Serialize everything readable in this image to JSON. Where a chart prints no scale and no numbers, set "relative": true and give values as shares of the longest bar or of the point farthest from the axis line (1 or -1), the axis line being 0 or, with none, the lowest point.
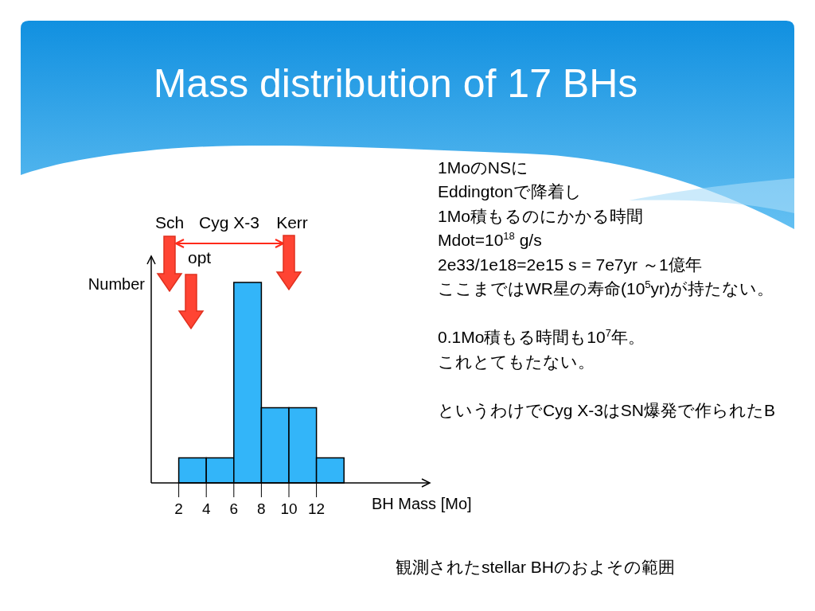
{
  "chart_data": {
    "type": "bar",
    "title": "Mass distribution of 17 BHs",
    "xlabel": "BH Mass [Mo]",
    "ylabel": "Number",
    "x": [
      3,
      5,
      7,
      9,
      11,
      13
    ],
    "values": [
      0.125,
      0.125,
      1,
      0.375,
      0.375,
      0.125
    ],
    "relative": true,
    "color": "#33b5f9",
    "xlim": [
      0,
      20
    ],
    "xticks": [
      2,
      4,
      6,
      8,
      10,
      12
    ],
    "annotations": [
      "Sch",
      "Cyg X-3",
      "Kerr",
      "opt",
      "1MoのNSに",
      "Eddingtonで降着し",
      "1Mo積もるのにかかる時間",
      "Mdot=10$^{18}$ g/s",
      "2e33/1e18=2e15 s = 7e7yr ～1億年",
      "ここまではWR星の寿命(10$^{5}$yr)が持たない。",
      "0.1Mo積もる時間も10$^{7}$年。",
      "これとてもたない。",
      "というわけでCyg X-3はSN爆発で作られたB",
      "観測されたstellar BHのおよその範囲"
    ]
  }
}
